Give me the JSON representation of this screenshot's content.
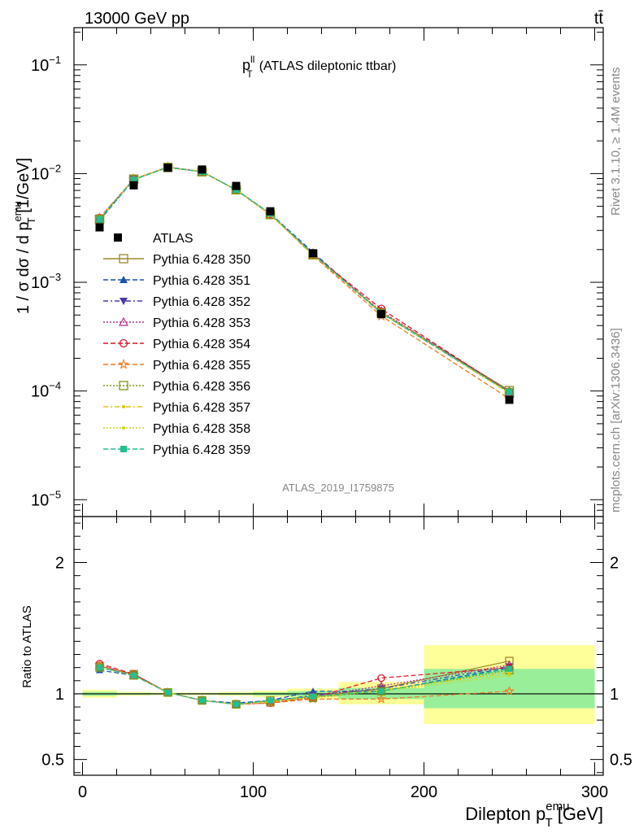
{
  "header": {
    "energy_label": "13000 GeV pp",
    "process_label": "tt̄"
  },
  "side_labels": {
    "rivet": "Rivet 3.1.10, ≥ 1.4M events",
    "mcplots": "mcplots.cern.ch [arXiv:1306.3436]"
  },
  "chart_data": [
    {
      "type": "line",
      "title_main": "p",
      "title_sup": "ll",
      "title_sub": "T",
      "title_rest": "(ATLAS dileptonic ttbar)",
      "watermark": "ATLAS_2019_I1759875",
      "ylabel_parts": [
        "1 / σ  dσ / d p",
        "emu",
        "T",
        " [1/GeV]"
      ],
      "yscale": "log",
      "ylim": [
        7e-06,
        0.22
      ],
      "xlim": [
        -5,
        305
      ],
      "ytick_labels": [
        {
          "base": "10",
          "exp": "−5",
          "value": 1e-05
        },
        {
          "base": "10",
          "exp": "−4",
          "value": 0.0001
        },
        {
          "base": "10",
          "exp": "−3",
          "value": 0.001
        },
        {
          "base": "10",
          "exp": "−2",
          "value": 0.01
        },
        {
          "base": "10",
          "exp": "−1",
          "value": 0.1
        }
      ],
      "x": [
        10,
        30,
        50,
        70,
        90,
        110,
        135,
        175,
        250
      ],
      "data": {
        "name": "ATLAS",
        "values": [
          0.0032,
          0.0078,
          0.0113,
          0.0109,
          0.0077,
          0.0045,
          0.00185,
          0.00051,
          8.3e-05
        ]
      },
      "series": [
        {
          "name": "Pythia 6.428 350",
          "color": "#9a8a2a",
          "marker": "open-square",
          "dash": "",
          "values": [
            0.0038,
            0.0089,
            0.0114,
            0.0104,
            0.0071,
            0.0042,
            0.00182,
            0.00053,
            0.000101
          ]
        },
        {
          "name": "Pythia 6.428 351",
          "color": "#1f4fb4",
          "marker": "filled-triangle-up",
          "dash": "6,3",
          "values": [
            0.0037,
            0.0088,
            0.0114,
            0.0104,
            0.0071,
            0.0043,
            0.00189,
            0.00052,
            9.7e-05
          ]
        },
        {
          "name": "Pythia 6.428 352",
          "color": "#4a3aa8",
          "marker": "filled-triangle-down",
          "dash": "6,3,2,3",
          "values": [
            0.0038,
            0.0089,
            0.0115,
            0.0104,
            0.0071,
            0.0042,
            0.00184,
            0.00053,
            9.8e-05
          ]
        },
        {
          "name": "Pythia 6.428 353",
          "color": "#b0308a",
          "marker": "open-triangle-up",
          "dash": "2,2",
          "values": [
            0.0039,
            0.0089,
            0.0114,
            0.0104,
            0.0071,
            0.0042,
            0.00181,
            0.00054,
            9.9e-05
          ]
        },
        {
          "name": "Pythia 6.428 354",
          "color": "#e0142a",
          "marker": "open-circle",
          "dash": "6,3",
          "values": [
            0.0039,
            0.0089,
            0.0115,
            0.0104,
            0.0071,
            0.0042,
            0.0018,
            0.00057,
            9.8e-05
          ]
        },
        {
          "name": "Pythia 6.428 355",
          "color": "#f07820",
          "marker": "open-star",
          "dash": "6,3",
          "values": [
            0.0039,
            0.0089,
            0.0115,
            0.0104,
            0.0071,
            0.0042,
            0.00177,
            0.00049,
            8.5e-05
          ]
        },
        {
          "name": "Pythia 6.428 356",
          "color": "#7a9a10",
          "marker": "open-square",
          "dash": "2,2",
          "values": [
            0.0038,
            0.0089,
            0.0114,
            0.0104,
            0.0071,
            0.0042,
            0.00179,
            0.00052,
            9.7e-05
          ]
        },
        {
          "name": "Pythia 6.428 357",
          "color": "#e8c010",
          "marker": "small-dot",
          "dash": "6,3,2,3",
          "values": [
            0.0038,
            0.0089,
            0.0114,
            0.0104,
            0.0071,
            0.0042,
            0.0018,
            0.00053,
            9.6e-05
          ]
        },
        {
          "name": "Pythia 6.428 358",
          "color": "#c8d820",
          "marker": "small-dot",
          "dash": "2,2",
          "values": [
            0.0038,
            0.0089,
            0.0114,
            0.0104,
            0.0071,
            0.0042,
            0.00181,
            0.00052,
            9.5e-05
          ]
        },
        {
          "name": "Pythia 6.428 359",
          "color": "#20c090",
          "marker": "filled-square",
          "dash": "6,3",
          "values": [
            0.0038,
            0.0088,
            0.0114,
            0.0104,
            0.0071,
            0.0043,
            0.00182,
            0.00052,
            9.8e-05
          ]
        }
      ]
    },
    {
      "type": "line",
      "ylabel": "Ratio to ATLAS",
      "ylim": [
        0.38,
        2.35
      ],
      "xlim": [
        -5,
        305
      ],
      "ytick_labels": [
        {
          "label": "0.5",
          "value": 0.5
        },
        {
          "label": "1",
          "value": 1.0
        },
        {
          "label": "2",
          "value": 2.0
        }
      ],
      "xtick_labels": [
        {
          "label": "0",
          "value": 0
        },
        {
          "label": "100",
          "value": 100
        },
        {
          "label": "200",
          "value": 200
        },
        {
          "label": "300",
          "value": 300
        }
      ],
      "xlabel_parts": [
        "Dilepton p",
        "emu",
        "T",
        " [GeV]"
      ],
      "uncertainty_bands": [
        {
          "x": [
            0,
            20
          ],
          "yellow": [
            0.97,
            1.03
          ],
          "green": [
            0.985,
            1.015
          ]
        },
        {
          "x": [
            20,
            40
          ],
          "yellow": [
            0.985,
            1.015
          ],
          "green": [
            0.993,
            1.007
          ]
        },
        {
          "x": [
            40,
            60
          ],
          "yellow": [
            0.99,
            1.01
          ],
          "green": [
            0.995,
            1.005
          ]
        },
        {
          "x": [
            60,
            80
          ],
          "yellow": [
            0.99,
            1.01
          ],
          "green": [
            0.995,
            1.005
          ]
        },
        {
          "x": [
            80,
            100
          ],
          "yellow": [
            0.985,
            1.015
          ],
          "green": [
            0.993,
            1.007
          ]
        },
        {
          "x": [
            100,
            120
          ],
          "yellow": [
            0.975,
            1.025
          ],
          "green": [
            0.988,
            1.012
          ]
        },
        {
          "x": [
            120,
            150
          ],
          "yellow": [
            0.96,
            1.04
          ],
          "green": [
            0.98,
            1.02
          ]
        },
        {
          "x": [
            150,
            200
          ],
          "yellow": [
            0.92,
            1.09
          ],
          "green": [
            0.96,
            1.045
          ]
        },
        {
          "x": [
            200,
            300
          ],
          "yellow": [
            0.77,
            1.37
          ],
          "green": [
            0.89,
            1.19
          ]
        }
      ],
      "x": [
        10,
        30,
        50,
        70,
        90,
        110,
        135,
        175,
        250
      ],
      "series": [
        {
          "name": "Pythia 6.428 350",
          "values": [
            1.21,
            1.15,
            1.01,
            0.95,
            0.92,
            0.95,
            0.98,
            1.04,
            1.25
          ]
        },
        {
          "name": "Pythia 6.428 351",
          "values": [
            1.18,
            1.14,
            1.01,
            0.95,
            0.93,
            0.95,
            1.02,
            1.02,
            1.2
          ]
        },
        {
          "name": "Pythia 6.428 352",
          "values": [
            1.2,
            1.15,
            1.01,
            0.95,
            0.92,
            0.94,
            0.99,
            1.04,
            1.21
          ]
        },
        {
          "name": "Pythia 6.428 353",
          "values": [
            1.22,
            1.14,
            1.01,
            0.95,
            0.92,
            0.93,
            0.98,
            1.06,
            1.22
          ]
        },
        {
          "name": "Pythia 6.428 354",
          "values": [
            1.23,
            1.15,
            1.01,
            0.95,
            0.92,
            0.93,
            0.97,
            1.12,
            1.2
          ]
        },
        {
          "name": "Pythia 6.428 355",
          "values": [
            1.22,
            1.14,
            1.01,
            0.95,
            0.92,
            0.93,
            0.96,
            0.96,
            1.02
          ]
        },
        {
          "name": "Pythia 6.428 356",
          "values": [
            1.2,
            1.14,
            1.01,
            0.95,
            0.92,
            0.94,
            0.97,
            1.02,
            1.18
          ]
        },
        {
          "name": "Pythia 6.428 357",
          "values": [
            1.2,
            1.14,
            1.01,
            0.95,
            0.92,
            0.94,
            0.97,
            1.03,
            1.16
          ]
        },
        {
          "name": "Pythia 6.428 358",
          "values": [
            1.2,
            1.14,
            1.01,
            0.95,
            0.92,
            0.94,
            0.98,
            1.02,
            1.14
          ]
        },
        {
          "name": "Pythia 6.428 359",
          "values": [
            1.2,
            1.14,
            1.01,
            0.95,
            0.92,
            0.95,
            0.98,
            1.02,
            1.19
          ]
        }
      ]
    }
  ]
}
